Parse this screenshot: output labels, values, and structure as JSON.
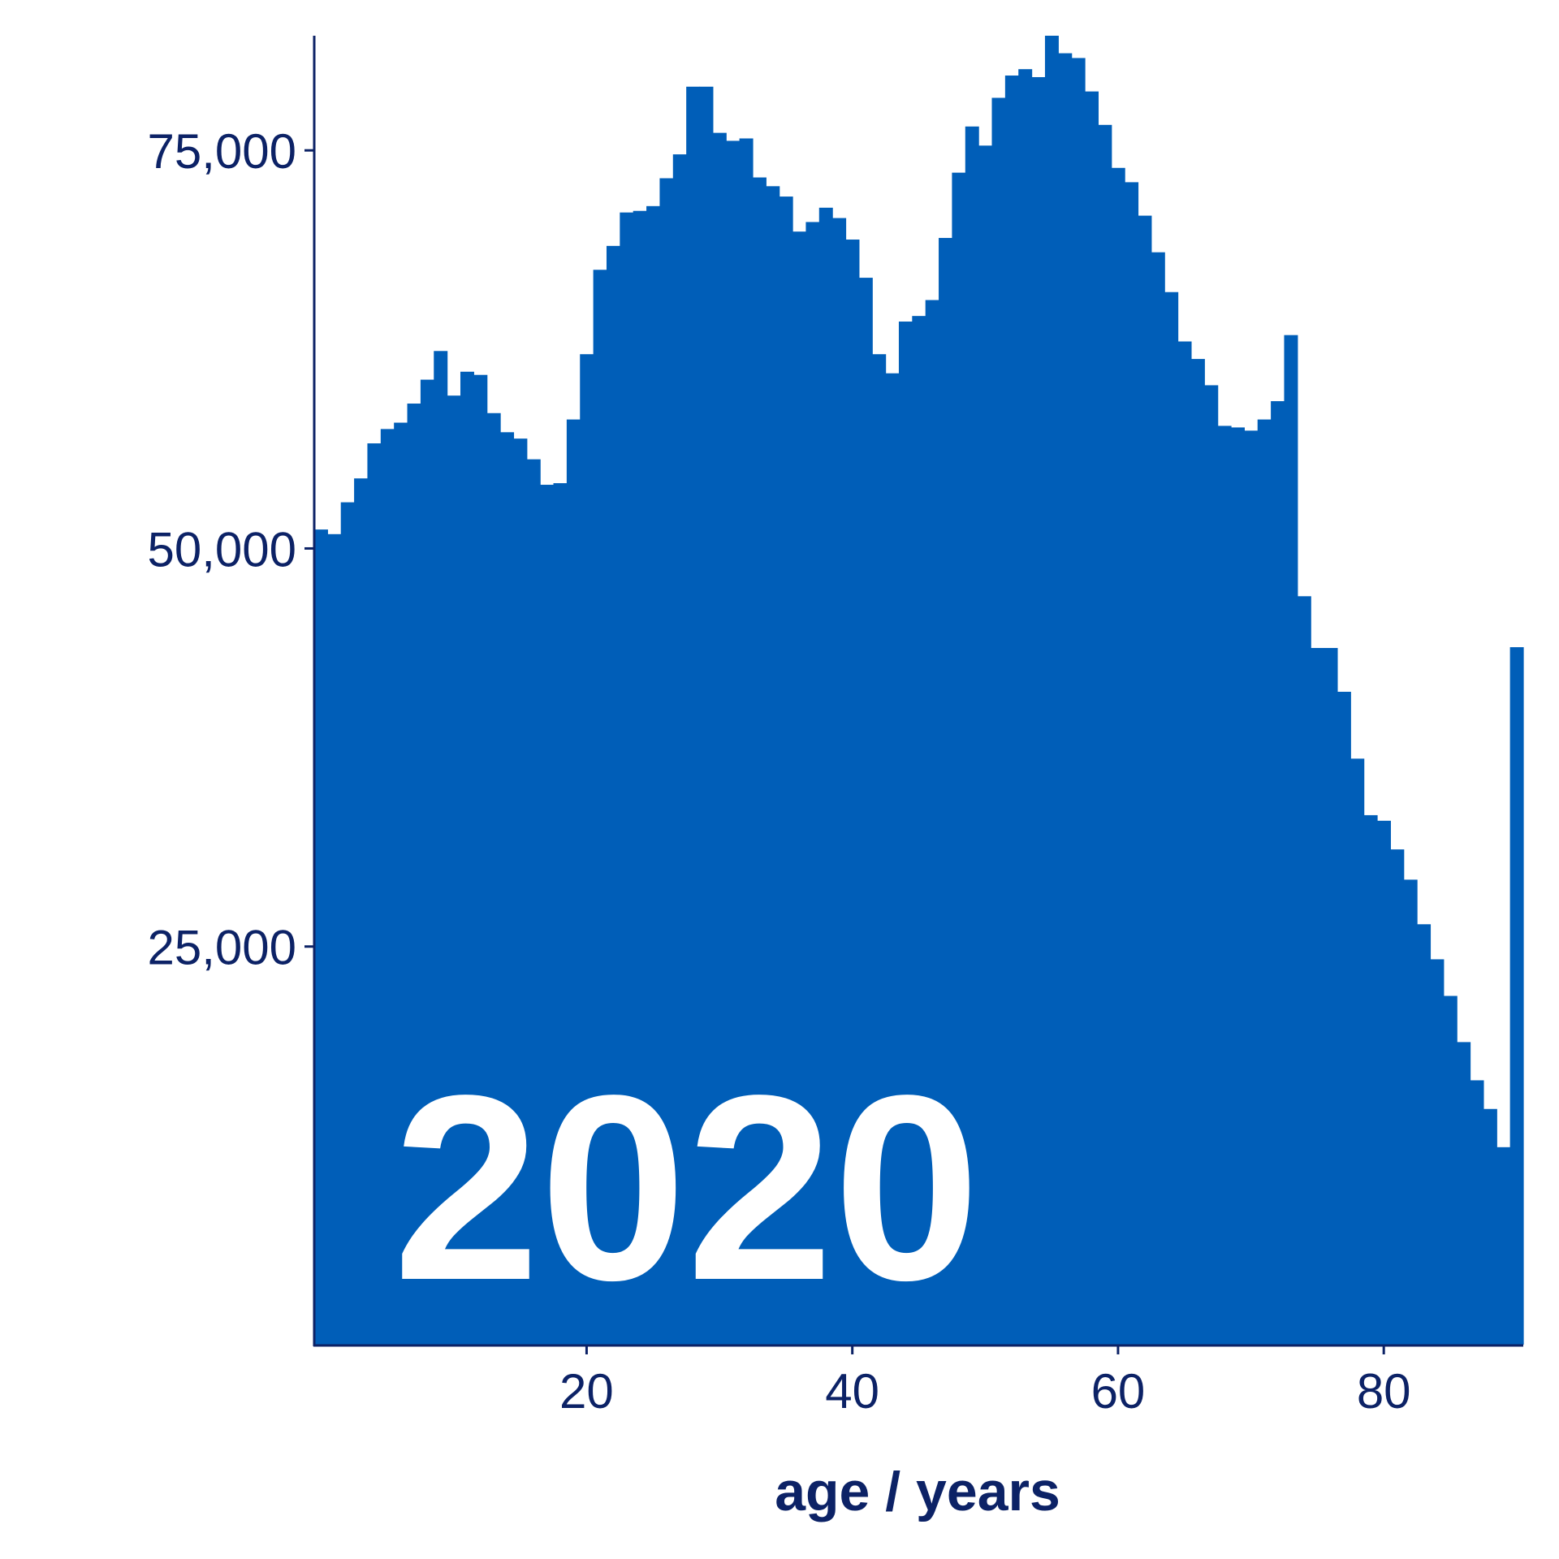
{
  "chart_data": {
    "type": "histogram",
    "x_label": "age / years",
    "annotation": "2020",
    "color": "#005eb8",
    "bins": [
      -0.5,
      0.5,
      1.5,
      2.5,
      3.5,
      4.5,
      5.5,
      6.5,
      7.5,
      8.5,
      9.5,
      10.5,
      11.5,
      12.5,
      13.5,
      14.5,
      15.5,
      16.5,
      17.5,
      18.5,
      19.5,
      20.5,
      21.5,
      22.5,
      23.5,
      24.5,
      25.5,
      26.5,
      27.5,
      28.5,
      29.5,
      30.5,
      31.5,
      32.5,
      33.5,
      34.5,
      35.5,
      36.5,
      37.5,
      38.5,
      39.5,
      40.5,
      41.5,
      42.5,
      43.5,
      44.5,
      45.5,
      46.5,
      47.5,
      48.5,
      49.5,
      50.5,
      51.5,
      52.5,
      53.5,
      54.5,
      55.5,
      56.5,
      57.5,
      58.5,
      59.5,
      60.5,
      61.5,
      62.5,
      63.5,
      64.5,
      65.5,
      66.5,
      67.5,
      68.5,
      69.5,
      70.5,
      71.5,
      72.5,
      73.5,
      74.5,
      75.5,
      76.5,
      77.5,
      78.5,
      79.5,
      80.5,
      81.5,
      82.5,
      83.5,
      84.5,
      85.5,
      86.5,
      87.5,
      88.5,
      89.5,
      90.5
    ],
    "values": [
      51190,
      50900,
      52900,
      54400,
      56600,
      57500,
      57900,
      59100,
      60600,
      62400,
      59600,
      61100,
      60900,
      58500,
      57300,
      56900,
      55600,
      54000,
      54100,
      58100,
      62200,
      67500,
      69000,
      71100,
      71200,
      71500,
      73250,
      74750,
      79000,
      79000,
      76100,
      75600,
      75750,
      73300,
      72750,
      72100,
      69900,
      70500,
      71400,
      70750,
      69400,
      67000,
      62200,
      61000,
      64250,
      64600,
      65600,
      69500,
      73600,
      76500,
      75300,
      78300,
      79700,
      80100,
      79600,
      82200,
      81100,
      80800,
      78700,
      76600,
      73900,
      73000,
      70900,
      68600,
      66100,
      63000,
      61900,
      60250,
      57700,
      57600,
      57400,
      58100,
      59250,
      63400,
      47000,
      43750,
      43750,
      41000,
      36800,
      33250,
      32900,
      31100,
      29200,
      26400,
      24200,
      21900,
      19000,
      16600,
      14800,
      12400,
      43800
    ],
    "xlim": [
      -0.5,
      90.5
    ],
    "ylim": [
      0,
      82200
    ],
    "xticks": [
      20,
      40,
      60,
      80
    ],
    "yticks": [
      {
        "value": 25000,
        "label": "25,000"
      },
      {
        "value": 50000,
        "label": "50,000"
      },
      {
        "value": 75000,
        "label": "75,000"
      }
    ]
  }
}
